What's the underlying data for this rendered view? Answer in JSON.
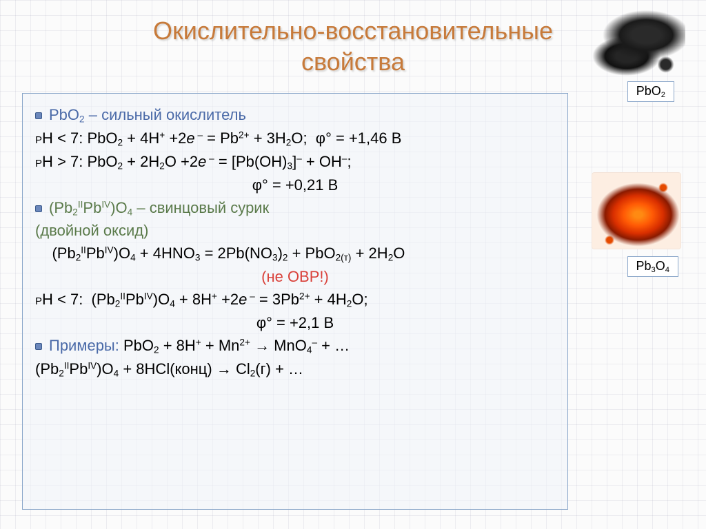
{
  "title_color": "#c77a3a",
  "title_lines": [
    "Окислительно-восстановительные",
    "свойства"
  ],
  "labels": {
    "pbo2": "PbO₂",
    "pb3o4": "Pb₃O₄"
  },
  "colors": {
    "heading": "#4a6aa8",
    "lead_text": "#5a7a4a",
    "not_ovr": "#d9413a",
    "example_heading": "#4a6aa8",
    "body": "#000000"
  },
  "lines": [
    {
      "bullet": true,
      "html": "PbO<sub>2</sub> – сильный окислитель",
      "color_key": "heading",
      "class": ""
    },
    {
      "bullet": false,
      "html": "<span class='sc'>pH</span> &lt; 7: PbO<sub>2</sub> + 4H<sup>+</sup> +2<i>e</i><sup>&nbsp;–</sup> = Pb<sup>2+</sup> + 3H<sub>2</sub>O;&nbsp;&nbsp;φ° = +1,46 В",
      "color_key": "body",
      "class": ""
    },
    {
      "bullet": false,
      "html": "<span class='sc'>pH</span> &gt; 7: PbO<sub>2</sub> + 2H<sub>2</sub>O +2<i>e</i><sup>&nbsp;–</sup> = [Pb(OH)<sub>3</sub>]<sup>–</sup> + OH<sup>–</sup>;",
      "color_key": "body",
      "class": ""
    },
    {
      "bullet": false,
      "html": "φ° = +0,21 В",
      "color_key": "body",
      "class": "center"
    },
    {
      "bullet": true,
      "html": "(Pb<sub>2</sub><sup>II</sup>Pb<sup>IV</sup>)O<sub>4</sub> – свинцовый сурик",
      "color_key": "lead_text",
      "class": ""
    },
    {
      "bullet": false,
      "html": "(двойной оксид)",
      "color_key": "lead_text",
      "class": ""
    },
    {
      "bullet": false,
      "html": "&nbsp;&nbsp;&nbsp;&nbsp;(Pb<sub>2</sub><sup>II</sup>Pb<sup>IV</sup>)O<sub>4</sub> + 4HNO<sub>3</sub> = 2Pb(NO<sub>3</sub>)<sub>2</sub> + PbO<sub>2(т)</sub> + 2H<sub>2</sub>O",
      "color_key": "body",
      "class": ""
    },
    {
      "bullet": false,
      "html": "(не ОВР!)",
      "color_key": "not_ovr",
      "class": "center"
    },
    {
      "bullet": false,
      "html": "<span class='sc'>pH</span> &lt; 7:&nbsp;&nbsp;(Pb<sub>2</sub><sup>II</sup>Pb<sup>IV</sup>)O<sub>4</sub> + 8H<sup>+</sup> +2<i>e</i><sup>&nbsp;–</sup> = 3Pb<sup>2+</sup> + 4H<sub>2</sub>O;",
      "color_key": "body",
      "class": ""
    },
    {
      "bullet": false,
      "html": "φ° = +2,1 В",
      "color_key": "body",
      "class": "center"
    },
    {
      "bullet": true,
      "html": "Примеры: <span style='color:#000'>PbO<sub>2</sub> + 8H<sup>+</sup> + Mn<sup>2+</sup> → MnO<sub>4</sub><sup>–</sup> + …</span>",
      "color_key": "example_heading",
      "class": ""
    },
    {
      "bullet": false,
      "html": "(Pb<sub>2</sub><sup>II</sup>Pb<sup>IV</sup>)O<sub>4</sub> + 8HCl(конц) → Cl<sub>2</sub>(г) + …",
      "color_key": "body",
      "class": ""
    }
  ]
}
